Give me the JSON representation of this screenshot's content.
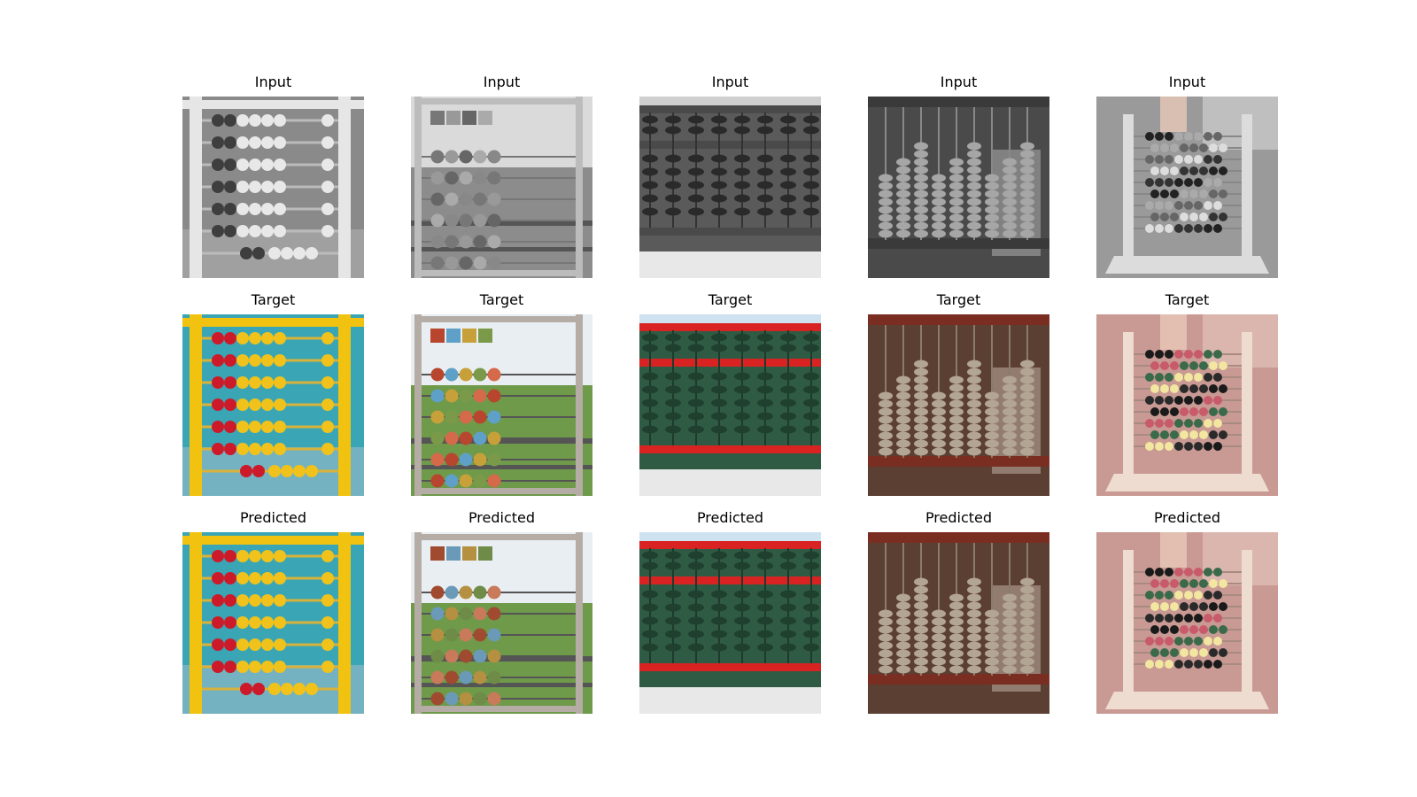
{
  "rows": [
    {
      "title": "Input"
    },
    {
      "title": "Target"
    },
    {
      "title": "Predicted"
    }
  ],
  "images": [
    {
      "name": "abacus-yellow-frame"
    },
    {
      "name": "abacus-wooden-frame"
    },
    {
      "name": "abacus-outdoor-red-rails"
    },
    {
      "name": "abacus-stone-beads"
    },
    {
      "name": "abacus-toy-child"
    }
  ]
}
